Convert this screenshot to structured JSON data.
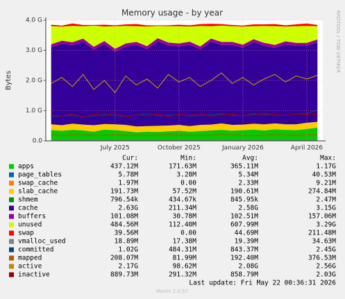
{
  "chart_data": {
    "type": "area",
    "title": "Memory usage - by year",
    "y_label": "Bytes",
    "side_note": "RRDTOOL / TOBI OETIKER",
    "categories": [
      null,
      null,
      null,
      null,
      null,
      null,
      "July 2025",
      null,
      null,
      null,
      null,
      null,
      "October 2025",
      null,
      null,
      null,
      null,
      null,
      "January 2026",
      null,
      null,
      null,
      null,
      null,
      "April 2026",
      null
    ],
    "ylim": [
      0,
      4
    ],
    "yticks": [
      {
        "value": 0,
        "label": "0.0"
      },
      {
        "value": 1,
        "label": "1.0 G"
      },
      {
        "value": 2,
        "label": "2.0 G"
      },
      {
        "value": 3,
        "label": "3.0 G"
      },
      {
        "value": 4,
        "label": "4.0 G"
      }
    ],
    "grid": true,
    "series": [
      {
        "name": "apps",
        "color": "#00cc00",
        "draw": "stack",
        "values": [
          0.35,
          0.33,
          0.36,
          0.34,
          0.3,
          0.37,
          0.35,
          0.32,
          0.28,
          0.3,
          0.29,
          0.31,
          0.33,
          0.3,
          0.32,
          0.34,
          0.36,
          0.33,
          0.35,
          0.37,
          0.34,
          0.38,
          0.36,
          0.35,
          0.39,
          0.43
        ]
      },
      {
        "name": "page_tables",
        "color": "#0066b3",
        "draw": "stack",
        "values": [
          0.005,
          0.005,
          0.005,
          0.005,
          0.005,
          0.005,
          0.005,
          0.005,
          0.005,
          0.005,
          0.005,
          0.005,
          0.005,
          0.005,
          0.005,
          0.005,
          0.005,
          0.005,
          0.005,
          0.005,
          0.005,
          0.005,
          0.005,
          0.005,
          0.005,
          0.006
        ]
      },
      {
        "name": "swap_cache",
        "color": "#ff8000",
        "draw": "stack",
        "values": [
          0.002,
          0.002,
          0.002,
          0.002,
          0.002,
          0.002,
          0.002,
          0.002,
          0.002,
          0.002,
          0.002,
          0.002,
          0.002,
          0.002,
          0.002,
          0.002,
          0.002,
          0.002,
          0.002,
          0.002,
          0.002,
          0.002,
          0.002,
          0.002,
          0.002,
          0.002
        ]
      },
      {
        "name": "slab_cache",
        "color": "#ffcc00",
        "draw": "stack",
        "values": [
          0.19,
          0.18,
          0.2,
          0.19,
          0.21,
          0.18,
          0.19,
          0.2,
          0.19,
          0.18,
          0.2,
          0.19,
          0.19,
          0.18,
          0.2,
          0.19,
          0.21,
          0.19,
          0.18,
          0.19,
          0.2,
          0.19,
          0.18,
          0.19,
          0.2,
          0.19
        ]
      },
      {
        "name": "shmem",
        "color": "#008f00",
        "draw": "stack",
        "values": [
          0.001,
          0.001,
          0.001,
          0.001,
          0.001,
          0.001,
          0.001,
          0.001,
          0.001,
          0.001,
          0.001,
          0.001,
          0.001,
          0.001,
          0.001,
          0.001,
          0.001,
          0.001,
          0.001,
          0.001,
          0.001,
          0.001,
          0.001,
          0.001,
          0.001,
          0.001
        ]
      },
      {
        "name": "cache",
        "color": "#330099",
        "draw": "stack",
        "values": [
          2.55,
          2.7,
          2.6,
          2.75,
          2.5,
          2.65,
          2.4,
          2.6,
          2.7,
          2.55,
          2.8,
          2.65,
          2.6,
          2.7,
          2.5,
          2.75,
          2.6,
          2.65,
          2.55,
          2.7,
          2.6,
          2.5,
          2.65,
          2.6,
          2.55,
          2.63
        ]
      },
      {
        "name": "buffers",
        "color": "#990099",
        "draw": "stack",
        "values": [
          0.1,
          0.1,
          0.1,
          0.1,
          0.1,
          0.1,
          0.1,
          0.1,
          0.1,
          0.1,
          0.1,
          0.1,
          0.1,
          0.1,
          0.1,
          0.1,
          0.1,
          0.1,
          0.1,
          0.1,
          0.1,
          0.1,
          0.1,
          0.1,
          0.1,
          0.1
        ]
      },
      {
        "name": "unused",
        "color": "#ccff00",
        "draw": "stack",
        "values": [
          0.6,
          0.47,
          0.54,
          0.41,
          0.7,
          0.48,
          0.75,
          0.58,
          0.52,
          0.65,
          0.41,
          0.54,
          0.57,
          0.5,
          0.68,
          0.41,
          0.54,
          0.52,
          0.6,
          0.43,
          0.56,
          0.62,
          0.49,
          0.55,
          0.56,
          0.44
        ]
      },
      {
        "name": "swap",
        "color": "#ff0000",
        "draw": "stack",
        "values": [
          0.05,
          0.03,
          0.08,
          0.04,
          0.02,
          0.06,
          0.03,
          0.05,
          0.07,
          0.04,
          0.02,
          0.03,
          0.05,
          0.04,
          0.06,
          0.08,
          0.05,
          0.04,
          0.03,
          0.06,
          0.05,
          0.07,
          0.04,
          0.06,
          0.08,
          0.04
        ]
      },
      {
        "name": "vmalloc_used",
        "color": "#808080",
        "draw": "line",
        "values": [
          0.019,
          0.019,
          0.019,
          0.019,
          0.019,
          0.019,
          0.019,
          0.019,
          0.019,
          0.019,
          0.019,
          0.019,
          0.019,
          0.019,
          0.019,
          0.019,
          0.019,
          0.019,
          0.019,
          0.019,
          0.019,
          0.019,
          0.019,
          0.019,
          0.019,
          0.019
        ]
      },
      {
        "name": "committed",
        "color": "#00487d",
        "draw": "line",
        "values": [
          0.8,
          0.82,
          0.85,
          0.79,
          0.83,
          0.88,
          0.84,
          0.81,
          0.86,
          0.9,
          0.83,
          0.85,
          0.87,
          0.82,
          0.84,
          0.86,
          0.89,
          0.85,
          0.83,
          0.87,
          0.9,
          0.86,
          0.84,
          0.88,
          0.91,
          1.02
        ]
      },
      {
        "name": "mapped",
        "color": "#b35a00",
        "draw": "line",
        "values": [
          0.19,
          0.18,
          0.2,
          0.19,
          0.19,
          0.18,
          0.2,
          0.19,
          0.19,
          0.18,
          0.19,
          0.2,
          0.19,
          0.19,
          0.18,
          0.19,
          0.2,
          0.19,
          0.19,
          0.18,
          0.19,
          0.2,
          0.19,
          0.19,
          0.2,
          0.21
        ]
      },
      {
        "name": "active",
        "color": "#b38f00",
        "draw": "line",
        "values": [
          1.9,
          2.1,
          1.8,
          2.2,
          1.7,
          2.0,
          1.6,
          2.15,
          1.85,
          2.05,
          1.75,
          2.2,
          1.95,
          2.1,
          1.8,
          2.0,
          2.25,
          1.9,
          2.1,
          1.85,
          2.05,
          2.2,
          1.95,
          2.15,
          2.05,
          2.17
        ]
      },
      {
        "name": "inactive",
        "color": "#990000",
        "draw": "line",
        "values": [
          0.85,
          0.82,
          0.9,
          0.78,
          0.88,
          0.84,
          0.92,
          0.8,
          0.86,
          0.83,
          0.89,
          0.81,
          0.87,
          0.84,
          0.9,
          0.82,
          0.86,
          0.88,
          0.83,
          0.91,
          0.85,
          0.87,
          0.84,
          0.89,
          0.86,
          0.89
        ]
      }
    ]
  },
  "legend_table": {
    "columns": [
      "Cur:",
      "Min:",
      "Avg:",
      "Max:"
    ],
    "rows": [
      [
        "437.12M",
        "171.63M",
        "365.11M",
        "1.17G"
      ],
      [
        "5.78M",
        "3.28M",
        "5.34M",
        "40.53M"
      ],
      [
        "1.97M",
        "0.00",
        "2.33M",
        "9.21M"
      ],
      [
        "191.73M",
        "57.52M",
        "190.61M",
        "274.84M"
      ],
      [
        "796.54k",
        "434.67k",
        "845.95k",
        "2.47M"
      ],
      [
        "2.63G",
        "211.34M",
        "2.58G",
        "3.15G"
      ],
      [
        "101.08M",
        "30.78M",
        "102.51M",
        "157.06M"
      ],
      [
        "484.56M",
        "112.40M",
        "607.99M",
        "3.29G"
      ],
      [
        "39.56M",
        "0.00",
        "44.69M",
        "211.48M"
      ],
      [
        "18.89M",
        "17.38M",
        "19.39M",
        "34.63M"
      ],
      [
        "1.02G",
        "484.31M",
        "843.37M",
        "2.45G"
      ],
      [
        "208.07M",
        "81.99M",
        "192.40M",
        "376.53M"
      ],
      [
        "2.17G",
        "98.62M",
        "2.08G",
        "2.56G"
      ],
      [
        "889.73M",
        "291.32M",
        "858.79M",
        "2.03G"
      ]
    ]
  },
  "footer": {
    "last_update": "Last update: Fri May 22 00:36:31 2026",
    "version": "Munin 2.0.57"
  }
}
